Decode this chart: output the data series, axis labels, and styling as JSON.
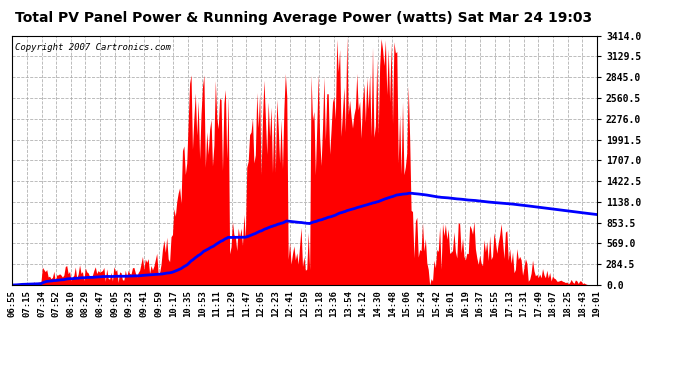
{
  "title": "Total PV Panel Power & Running Average Power (watts) Sat Mar 24 19:03",
  "copyright": "Copyright 2007 Cartronics.com",
  "background_color": "#ffffff",
  "plot_bg_color": "#ffffff",
  "grid_color": "#aaaaaa",
  "bar_color": "#ff0000",
  "line_color": "#0000ff",
  "y_ticks": [
    0.0,
    284.5,
    569.0,
    853.5,
    1138.0,
    1422.5,
    1707.0,
    1991.5,
    2276.0,
    2560.5,
    2845.0,
    3129.5,
    3414.0
  ],
  "ymax": 3414.0,
  "x_labels": [
    "06:55",
    "07:15",
    "07:34",
    "07:52",
    "08:10",
    "08:29",
    "08:47",
    "09:05",
    "09:23",
    "09:41",
    "09:59",
    "10:17",
    "10:35",
    "10:53",
    "11:11",
    "11:29",
    "11:47",
    "12:05",
    "12:23",
    "12:41",
    "12:59",
    "13:18",
    "13:36",
    "13:54",
    "14:12",
    "14:30",
    "14:48",
    "15:06",
    "15:24",
    "15:42",
    "16:01",
    "16:19",
    "16:37",
    "16:55",
    "17:13",
    "17:31",
    "17:49",
    "18:07",
    "18:25",
    "18:43",
    "19:01"
  ],
  "title_fontsize": 10,
  "copyright_fontsize": 6.5,
  "tick_fontsize": 7
}
